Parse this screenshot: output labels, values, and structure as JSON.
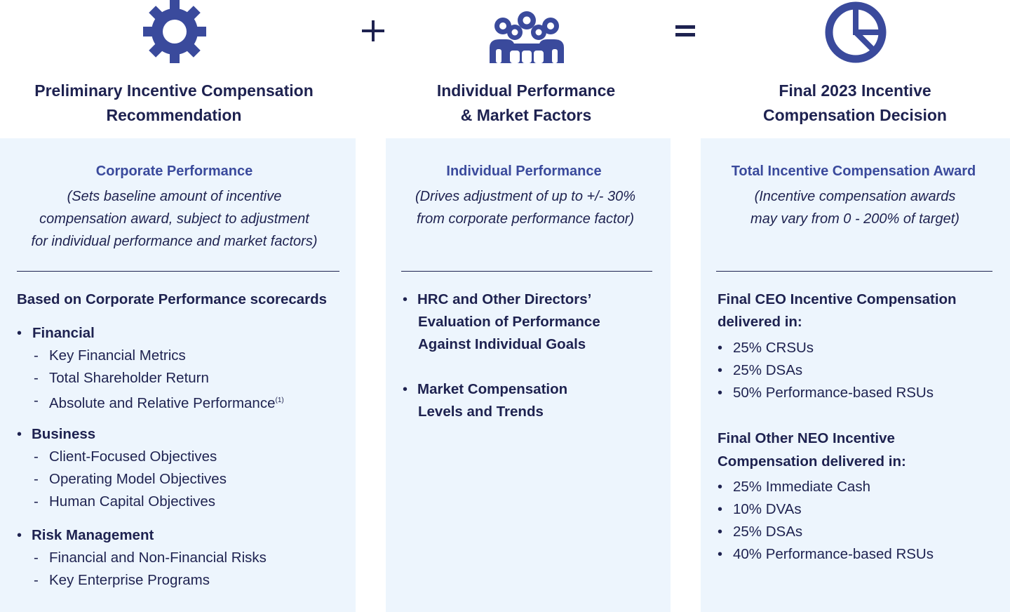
{
  "operators": {
    "plus": "+",
    "equals": "="
  },
  "columns": [
    {
      "icon": "gear-icon",
      "title_line1": "Preliminary Incentive Compensation",
      "title_line2": "Recommendation",
      "subtitle": "Corporate Performance",
      "note_lines": [
        "(Sets baseline amount of incentive",
        "compensation award, subject to adjustment",
        "for individual performance and market factors)"
      ],
      "heading": "Based on Corporate Performance scorecards",
      "groups": [
        {
          "label": "Financial",
          "items": [
            "Key Financial Metrics",
            "Total Shareholder Return",
            "Absolute and Relative Performance"
          ],
          "footnote": "(1)"
        },
        {
          "label": "Business",
          "items": [
            "Client-Focused Objectives",
            "Operating Model Objectives",
            "Human Capital Objectives"
          ]
        },
        {
          "label": "Risk Management",
          "items": [
            "Financial and Non-Financial Risks",
            "Key Enterprise Programs"
          ]
        }
      ]
    },
    {
      "icon": "people-group-icon",
      "title_line1": "Individual Performance",
      "title_line2": "& Market Factors",
      "subtitle": "Individual Performance",
      "note_lines": [
        "(Drives adjustment of up to +/- 30%",
        "from corporate performance factor)"
      ],
      "bullets": [
        {
          "lines": [
            "HRC and Other Directors’",
            "Evaluation of Performance",
            "Against Individual Goals"
          ]
        },
        {
          "lines": [
            "Market Compensation",
            "Levels and Trends"
          ]
        }
      ]
    },
    {
      "icon": "pie-chart-icon",
      "title_line1": "Final 2023 Incentive",
      "title_line2": "Compensation Decision",
      "subtitle": "Total Incentive Compensation Award",
      "note_lines": [
        "(Incentive compensation awards",
        "may vary from 0 - 200% of target)"
      ],
      "sections": [
        {
          "heading_lines": [
            "Final CEO Incentive Compensation",
            "delivered in:"
          ],
          "items": [
            "25% CRSUs",
            "25% DSAs",
            "50% Performance-based RSUs"
          ]
        },
        {
          "heading_lines": [
            "Final Other NEO Incentive",
            "Compensation delivered in:"
          ],
          "items": [
            "25% Immediate Cash",
            "10% DVAs",
            "25% DSAs",
            "40% Performance-based RSUs"
          ]
        }
      ]
    }
  ],
  "colors": {
    "icon": "#3a4a9c",
    "text": "#1e2250",
    "panel": "#edf5fd",
    "subtitle": "#3a4a9c"
  }
}
